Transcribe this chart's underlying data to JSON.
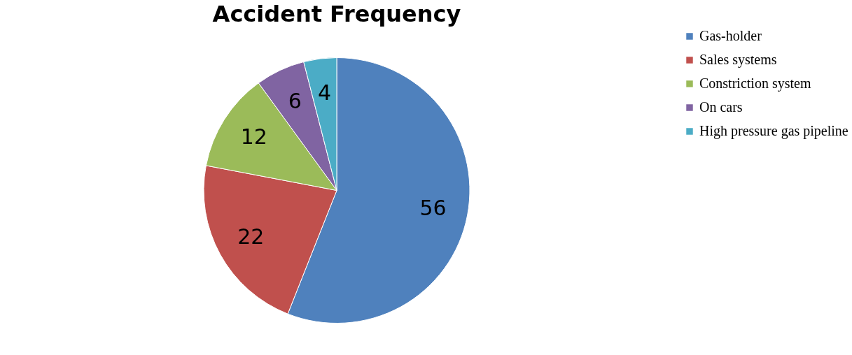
{
  "chart_data": {
    "type": "pie",
    "title": "Accident Frequency",
    "categories": [
      "Gas-holder",
      "Sales systems",
      "Constriction system",
      "On cars",
      "High pressure gas pipeline"
    ],
    "values": [
      56,
      22,
      12,
      6,
      4
    ],
    "colors": [
      "#4f81bd",
      "#c0504d",
      "#9bbb59",
      "#8064a2",
      "#4bacc6"
    ],
    "data_labels": true,
    "legend": "right"
  }
}
